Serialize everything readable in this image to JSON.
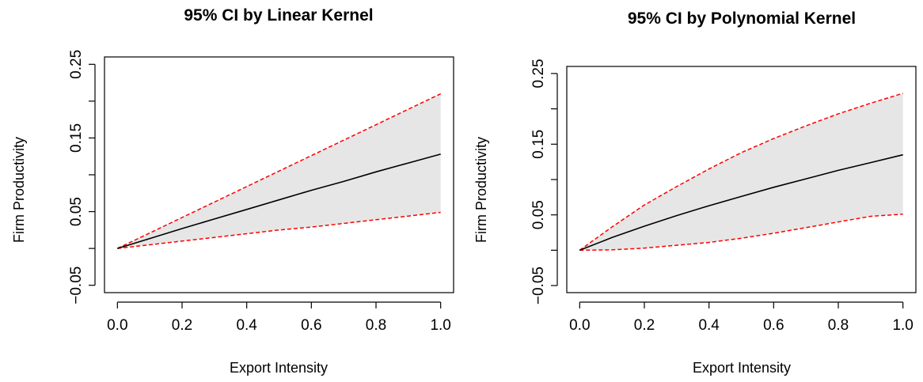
{
  "chart_data": [
    {
      "type": "line",
      "title": "95% CI by Linear Kernel",
      "xlabel": "Export Intensity",
      "ylabel": "Firm Productivity",
      "xlim": [
        0,
        1
      ],
      "ylim": [
        -0.06,
        0.26
      ],
      "xticks": [
        "0.0",
        "0.2",
        "0.4",
        "0.6",
        "0.8",
        "1.0"
      ],
      "yticks": [
        "-0.05",
        "0.05",
        "0.15",
        "0.25"
      ],
      "grid": false,
      "colors": {
        "fit": "#000000",
        "bounds": "#ff0000",
        "band": "#e6e6e6"
      },
      "x": [
        0.0,
        0.1,
        0.2,
        0.3,
        0.4,
        0.5,
        0.6,
        0.7,
        0.8,
        0.9,
        1.0
      ],
      "series": [
        {
          "role": "estimate",
          "values": [
            0.0,
            0.0135,
            0.027,
            0.04,
            0.053,
            0.066,
            0.079,
            0.091,
            0.104,
            0.116,
            0.128
          ]
        },
        {
          "role": "upper",
          "values": [
            0.0,
            0.021,
            0.042,
            0.063,
            0.084,
            0.105,
            0.126,
            0.147,
            0.168,
            0.189,
            0.21
          ]
        },
        {
          "role": "lower",
          "values": [
            0.0,
            0.005,
            0.01,
            0.015,
            0.02,
            0.025,
            0.029,
            0.034,
            0.039,
            0.044,
            0.049
          ]
        }
      ]
    },
    {
      "type": "line",
      "title": "95% CI by Polynomial Kernel",
      "xlabel": "Export Intensity",
      "ylabel": "Firm Productivity",
      "xlim": [
        0,
        1
      ],
      "ylim": [
        -0.06,
        0.26
      ],
      "xticks": [
        "0.0",
        "0.2",
        "0.4",
        "0.6",
        "0.8",
        "1.0"
      ],
      "yticks": [
        "-0.05",
        "0.05",
        "0.15",
        "0.25"
      ],
      "grid": false,
      "colors": {
        "fit": "#000000",
        "bounds": "#ff0000",
        "band": "#e6e6e6"
      },
      "x": [
        0.0,
        0.1,
        0.2,
        0.3,
        0.4,
        0.5,
        0.6,
        0.7,
        0.8,
        0.9,
        1.0
      ],
      "series": [
        {
          "role": "estimate",
          "values": [
            0.0,
            0.018,
            0.034,
            0.049,
            0.063,
            0.076,
            0.089,
            0.101,
            0.113,
            0.124,
            0.135
          ]
        },
        {
          "role": "upper",
          "values": [
            0.0,
            0.033,
            0.064,
            0.09,
            0.115,
            0.138,
            0.158,
            0.176,
            0.193,
            0.208,
            0.222
          ]
        },
        {
          "role": "lower",
          "values": [
            0.0,
            0.0005,
            0.003,
            0.007,
            0.011,
            0.017,
            0.024,
            0.032,
            0.04,
            0.048,
            0.051
          ]
        }
      ]
    }
  ]
}
